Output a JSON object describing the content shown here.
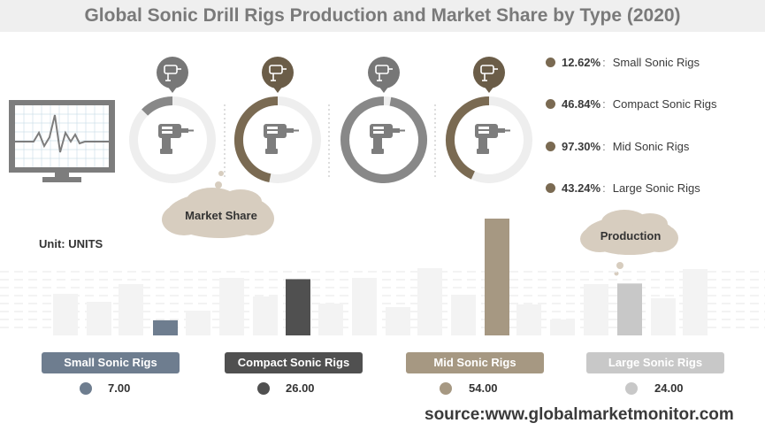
{
  "title": "Global Sonic Drill Rigs Production and Market Share by Type (2020)",
  "unit_label": "Unit: UNITS",
  "market_share_label": "Market Share",
  "production_label": "Production",
  "source": "source:www.globalmarketmonitor.com",
  "colors": {
    "small": "#6e7d8f",
    "compact": "#505050",
    "mid": "#a69882",
    "large": "#c8c8c8",
    "legend_dot": "#7a6a52",
    "cloud": "#d7cdbf",
    "ring_track": "#eeeeee"
  },
  "chart_data": [
    {
      "type": "pie",
      "title": "Market Share",
      "series": [
        {
          "name": "Small Sonic Rigs",
          "value": 12.62,
          "label": "12.62%",
          "ring_color": "#888888",
          "badge_color": "#777777"
        },
        {
          "name": "Compact Sonic Rigs",
          "value": 46.84,
          "label": "46.84%",
          "ring_color": "#7a6a52",
          "badge_color": "#6b5d48"
        },
        {
          "name": "Mid Sonic Rigs",
          "value": 97.3,
          "label": "97.30%",
          "ring_color": "#888888",
          "badge_color": "#777777"
        },
        {
          "name": "Large Sonic Rigs",
          "value": 43.24,
          "label": "43.24%",
          "ring_color": "#7a6a52",
          "badge_color": "#6b5d48"
        }
      ]
    },
    {
      "type": "bar",
      "title": "Production",
      "ylabel": "Unit: UNITS",
      "categories": [
        "Small Sonic Rigs",
        "Compact Sonic Rigs",
        "Mid Sonic Rigs",
        "Large Sonic Rigs"
      ],
      "values": [
        7.0,
        26.0,
        54.0,
        24.0
      ],
      "value_labels": [
        "7.00",
        "26.00",
        "54.00",
        "24.00"
      ],
      "colors": [
        "#6e7d8f",
        "#505050",
        "#a69882",
        "#c8c8c8"
      ],
      "ylim": [
        0,
        54
      ]
    }
  ]
}
